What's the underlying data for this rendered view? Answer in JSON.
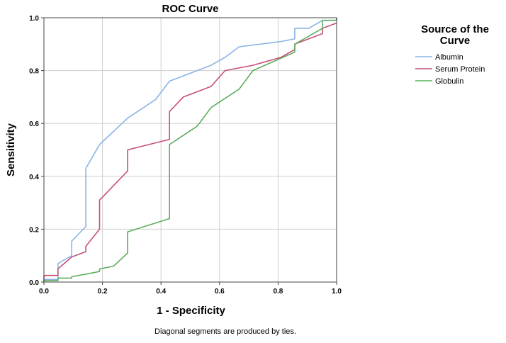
{
  "chart_data": {
    "type": "line",
    "title": "ROC Curve",
    "xlabel": "1 - Specificity",
    "ylabel": "Sensitivity",
    "xlim": [
      0.0,
      1.0
    ],
    "ylim": [
      0.0,
      1.0
    ],
    "x_ticks": [
      "0.0",
      "0.2",
      "0.4",
      "0.6",
      "0.8",
      "1.0"
    ],
    "y_ticks": [
      "0.0",
      "0.2",
      "0.4",
      "0.6",
      "0.8",
      "1.0"
    ],
    "grid": true,
    "legend": {
      "title_lines": [
        "Source of the",
        "Curve"
      ],
      "position": "top-right"
    },
    "footnote": "Diagonal segments are produced by ties.",
    "series": [
      {
        "name": "Albumin",
        "color": "#8ab4e6",
        "points": [
          [
            0,
            0
          ],
          [
            0,
            0.01
          ],
          [
            0.048,
            0.01
          ],
          [
            0.048,
            0.07
          ],
          [
            0.095,
            0.1
          ],
          [
            0.095,
            0.155
          ],
          [
            0.143,
            0.21
          ],
          [
            0.143,
            0.43
          ],
          [
            0.19,
            0.52
          ],
          [
            0.286,
            0.62
          ],
          [
            0.381,
            0.69
          ],
          [
            0.429,
            0.76
          ],
          [
            0.571,
            0.82
          ],
          [
            0.619,
            0.85
          ],
          [
            0.667,
            0.89
          ],
          [
            0.81,
            0.91
          ],
          [
            0.857,
            0.92
          ],
          [
            0.857,
            0.96
          ],
          [
            0.905,
            0.96
          ],
          [
            0.952,
            0.99
          ],
          [
            1.0,
            0.99
          ],
          [
            1.0,
            1.0
          ]
        ]
      },
      {
        "name": "Serum Protein",
        "color": "#c64f78",
        "points": [
          [
            0,
            0
          ],
          [
            0,
            0.025
          ],
          [
            0.048,
            0.025
          ],
          [
            0.048,
            0.05
          ],
          [
            0.095,
            0.095
          ],
          [
            0.143,
            0.115
          ],
          [
            0.143,
            0.135
          ],
          [
            0.19,
            0.2
          ],
          [
            0.19,
            0.31
          ],
          [
            0.286,
            0.42
          ],
          [
            0.286,
            0.5
          ],
          [
            0.429,
            0.54
          ],
          [
            0.429,
            0.645
          ],
          [
            0.476,
            0.7
          ],
          [
            0.571,
            0.74
          ],
          [
            0.619,
            0.8
          ],
          [
            0.714,
            0.82
          ],
          [
            0.81,
            0.85
          ],
          [
            0.857,
            0.88
          ],
          [
            0.857,
            0.9
          ],
          [
            0.905,
            0.92
          ],
          [
            0.952,
            0.94
          ],
          [
            0.952,
            0.96
          ],
          [
            1.0,
            0.98
          ]
        ]
      },
      {
        "name": "Globulin",
        "color": "#5cad5c",
        "points": [
          [
            0,
            0
          ],
          [
            0,
            0.005
          ],
          [
            0.048,
            0.005
          ],
          [
            0.048,
            0.015
          ],
          [
            0.095,
            0.015
          ],
          [
            0.095,
            0.02
          ],
          [
            0.143,
            0.03
          ],
          [
            0.19,
            0.04
          ],
          [
            0.19,
            0.05
          ],
          [
            0.238,
            0.06
          ],
          [
            0.286,
            0.11
          ],
          [
            0.286,
            0.19
          ],
          [
            0.429,
            0.24
          ],
          [
            0.429,
            0.52
          ],
          [
            0.524,
            0.59
          ],
          [
            0.571,
            0.66
          ],
          [
            0.667,
            0.73
          ],
          [
            0.714,
            0.8
          ],
          [
            0.857,
            0.87
          ],
          [
            0.857,
            0.9
          ],
          [
            0.952,
            0.96
          ],
          [
            0.952,
            0.99
          ],
          [
            1.0,
            0.99
          ],
          [
            1.0,
            1.0
          ]
        ]
      }
    ]
  }
}
